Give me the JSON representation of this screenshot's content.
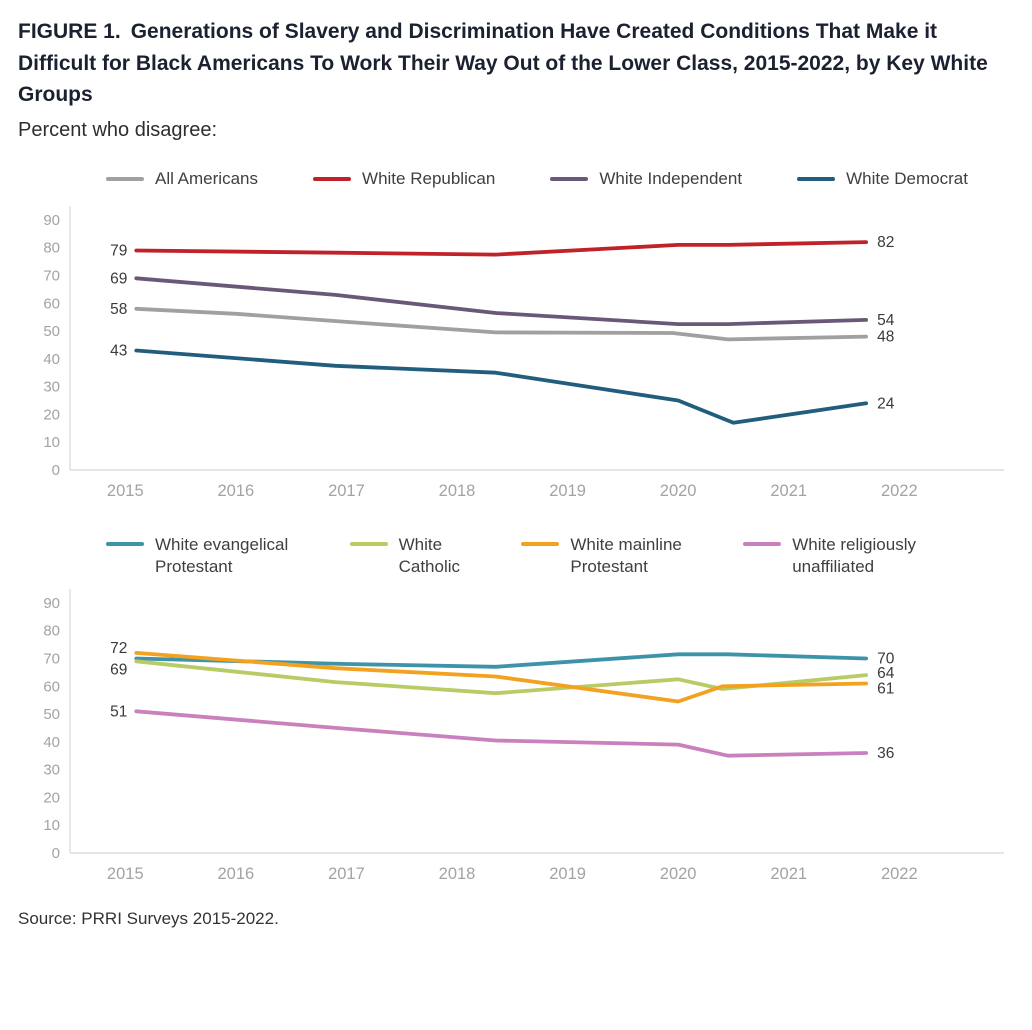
{
  "figure": {
    "title_prefix": "FIGURE 1.",
    "title_rest": "Generations of Slavery and Discrimination Have Created Conditions That Make it Difficult for Black Americans To Work Their Way Out of the Lower Class, 2015-2022, by Key White Groups",
    "subtitle": "Percent who disagree:",
    "source": "Source: PRRI Surveys 2015-2022."
  },
  "colors": {
    "axis_line": "#d8d8d8",
    "tick_label": "#a3a3a3",
    "value_label": "#3a3a3a"
  },
  "chart_data": [
    {
      "type": "line",
      "title": "",
      "xlabel": "",
      "ylabel": "",
      "grid": false,
      "legend_position": "top",
      "x_ticks": [
        "2015",
        "2016",
        "2017",
        "2018",
        "2019",
        "2020",
        "2021",
        "2022"
      ],
      "y_ticks": [
        0,
        10,
        20,
        30,
        40,
        50,
        60,
        70,
        80,
        90
      ],
      "xlim": [
        2014.5,
        2022.35
      ],
      "ylim": [
        0,
        95
      ],
      "series": [
        {
          "name": "All Americans",
          "color": "#a0a0a0",
          "start_label": "58",
          "end_label": "48",
          "points": [
            [
              2015.1,
              58
            ],
            [
              2016,
              56.2
            ],
            [
              2017,
              53.3
            ],
            [
              2018.35,
              49.5
            ],
            [
              2019.95,
              49.3
            ],
            [
              2020.45,
              47
            ],
            [
              2021.7,
              48
            ]
          ]
        },
        {
          "name": "White Republican",
          "color": "#bf2228",
          "start_label": "79",
          "end_label": "82",
          "points": [
            [
              2015.1,
              79
            ],
            [
              2016.9,
              78.2
            ],
            [
              2018.35,
              77.5
            ],
            [
              2020,
              81
            ],
            [
              2020.45,
              81
            ],
            [
              2021.7,
              82
            ]
          ]
        },
        {
          "name": "White Independent",
          "color": "#6a5878",
          "start_label": "69",
          "end_label": "54",
          "points": [
            [
              2015.1,
              69
            ],
            [
              2016.9,
              63
            ],
            [
              2018.35,
              56.5
            ],
            [
              2020,
              52.5
            ],
            [
              2020.45,
              52.5
            ],
            [
              2021.7,
              54
            ]
          ]
        },
        {
          "name": "White Democrat",
          "color": "#215e7e",
          "start_label": "43",
          "end_label": "24",
          "points": [
            [
              2015.1,
              43
            ],
            [
              2016.9,
              37.5
            ],
            [
              2018.35,
              35
            ],
            [
              2020,
              25
            ],
            [
              2020.5,
              17
            ],
            [
              2021.7,
              24
            ]
          ]
        }
      ]
    },
    {
      "type": "line",
      "title": "",
      "xlabel": "",
      "ylabel": "",
      "grid": false,
      "legend_position": "top",
      "x_ticks": [
        "2015",
        "2016",
        "2017",
        "2018",
        "2019",
        "2020",
        "2021",
        "2022"
      ],
      "y_ticks": [
        0,
        10,
        20,
        30,
        40,
        50,
        60,
        70,
        80,
        90
      ],
      "xlim": [
        2014.5,
        2022.35
      ],
      "ylim": [
        0,
        95
      ],
      "series": [
        {
          "name": "White evangelical\nProtestant",
          "color": "#3d94a8",
          "end_label": "70",
          "points": [
            [
              2015.1,
              70
            ],
            [
              2017,
              68
            ],
            [
              2018.35,
              67
            ],
            [
              2020,
              71.5
            ],
            [
              2020.45,
              71.5
            ],
            [
              2021.7,
              70
            ]
          ]
        },
        {
          "name": "White\nCatholic",
          "color": "#b8cc66",
          "start_label": "69",
          "start_dy": 8,
          "end_label": "64",
          "end_dy": -2,
          "points": [
            [
              2015.1,
              69
            ],
            [
              2016.9,
              61.5
            ],
            [
              2018.35,
              57.5
            ],
            [
              2020,
              62.5
            ],
            [
              2020.4,
              59
            ],
            [
              2021.7,
              64
            ]
          ]
        },
        {
          "name": "White mainline\nProtestant",
          "color": "#f2a21e",
          "start_label": "72",
          "start_dy": -5,
          "end_label": "61",
          "end_dy": 5,
          "points": [
            [
              2015.1,
              72
            ],
            [
              2016.9,
              66.5
            ],
            [
              2018.35,
              63.5
            ],
            [
              2020,
              54.5
            ],
            [
              2020.4,
              60
            ],
            [
              2021.7,
              61
            ]
          ]
        },
        {
          "name": "White religiously\nunaffiliated",
          "color": "#ca80bd",
          "start_label": "51",
          "end_label": "36",
          "points": [
            [
              2015.1,
              51
            ],
            [
              2016.9,
              45
            ],
            [
              2018.35,
              40.5
            ],
            [
              2020,
              39
            ],
            [
              2020.45,
              35
            ],
            [
              2021.7,
              36
            ]
          ]
        }
      ]
    }
  ]
}
